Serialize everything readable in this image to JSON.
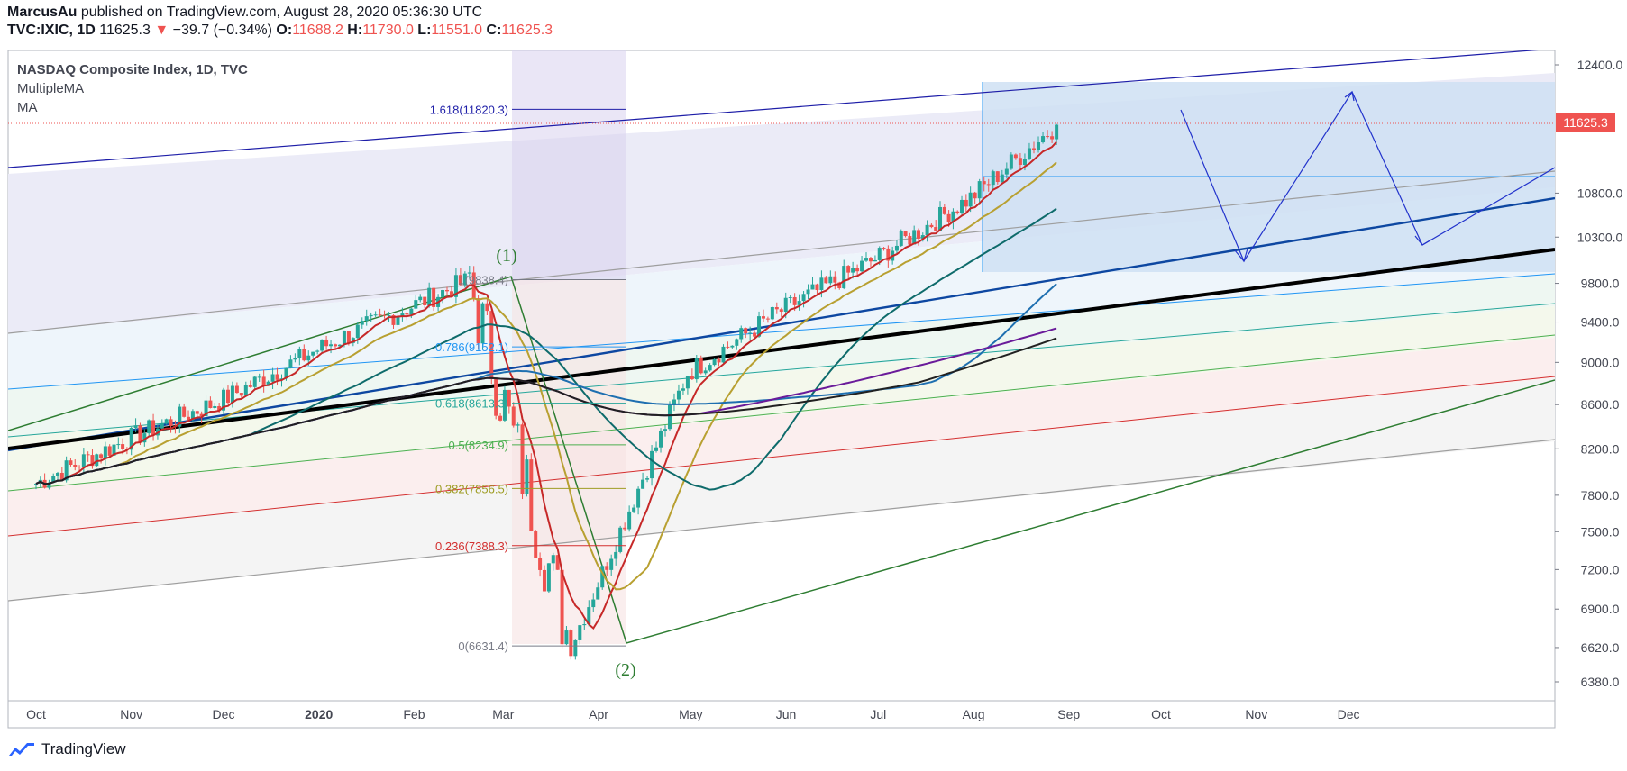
{
  "header": {
    "author": "MarcusAu",
    "published_text": "published on TradingView.com, August 28, 2020 05:36:30 UTC",
    "symbol": "TVC:IXIC, 1D",
    "last": "11625.3",
    "change_arrow": "▼",
    "change": "−39.7 (−0.34%)",
    "open_label": "O:",
    "open": "11688.2",
    "high_label": "H:",
    "high": "11730.0",
    "low_label": "L:",
    "low": "11551.0",
    "close_label": "C:",
    "close": "11625.3"
  },
  "legend": {
    "title": "NASDAQ Composite Index, 1D, TVC",
    "indicator1": "MultipleMA",
    "indicator2": "MA"
  },
  "price_badge": "11625.3",
  "wave_labels": {
    "wave1": "(1)",
    "wave2": "(2)"
  },
  "fib_levels": [
    {
      "label": "1.618(11820.3)",
      "price": 11820.3,
      "color": "#1e1ea8"
    },
    {
      "label": "1(9838.4)",
      "price": 9838.4,
      "color": "#787b86"
    },
    {
      "label": "0.786(9152.1)",
      "price": 9152.1,
      "color": "#2196f3"
    },
    {
      "label": "0.618(8613.3)",
      "price": 8613.3,
      "color": "#26a69a"
    },
    {
      "label": "0.5(8234.9)",
      "price": 8234.9,
      "color": "#4caf50"
    },
    {
      "label": "0.382(7856.5)",
      "price": 7856.5,
      "color": "#9e9d24"
    },
    {
      "label": "0.236(7388.3)",
      "price": 7388.3,
      "color": "#d32f2f"
    },
    {
      "label": "0(6631.4)",
      "price": 6631.4,
      "color": "#787b86"
    }
  ],
  "footer": {
    "brand": "TradingView"
  },
  "colors": {
    "up": "#26a69a",
    "down": "#ef5350",
    "ma_red": "#c62828",
    "ma_gold": "#b8a031",
    "ma_teal": "#0e6b6b"
  },
  "chart_data": {
    "type": "candlestick",
    "title": "NASDAQ Composite Index, 1D, TVC",
    "x_ticks": [
      "Oct",
      "Nov",
      "Dec",
      "2020",
      "Feb",
      "Mar",
      "Apr",
      "May",
      "Jun",
      "Jul",
      "Aug",
      "Sep",
      "Oct",
      "Nov",
      "Dec"
    ],
    "y_ticks": [
      "12400.0",
      "10800.0",
      "10300.0",
      "9800.0",
      "9400.0",
      "9000.0",
      "8600.0",
      "8200.0",
      "7800.0",
      "7500.0",
      "7200.0",
      "6900.0",
      "6620.0",
      "6380.0"
    ],
    "y_scale": "log",
    "ylim": [
      6250,
      12600
    ],
    "last_price": 11625.3,
    "monthly_closes": [
      {
        "date": "2019-10-01",
        "close": 7900
      },
      {
        "date": "2019-11-01",
        "close": 8300
      },
      {
        "date": "2019-12-01",
        "close": 8650
      },
      {
        "date": "2020-01-02",
        "close": 9150
      },
      {
        "date": "2020-02-19",
        "close": 9838.4
      },
      {
        "date": "2020-03-23",
        "close": 6631.4
      },
      {
        "date": "2020-04-30",
        "close": 8900
      },
      {
        "date": "2020-05-29",
        "close": 9490
      },
      {
        "date": "2020-06-30",
        "close": 10060
      },
      {
        "date": "2020-07-31",
        "close": 10745
      },
      {
        "date": "2020-08-28",
        "close": 11625.3
      }
    ]
  }
}
